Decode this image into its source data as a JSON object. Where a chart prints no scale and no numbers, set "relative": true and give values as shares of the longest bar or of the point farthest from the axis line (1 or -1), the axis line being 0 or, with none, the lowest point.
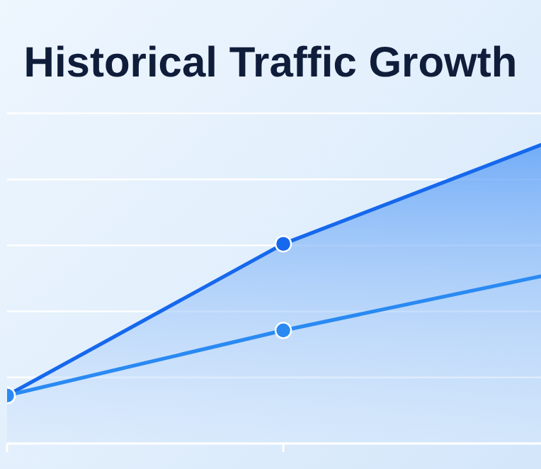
{
  "chart_data": {
    "type": "line",
    "title": "Historical Traffic Growth",
    "relative": true,
    "categories": [
      null,
      null,
      null
    ],
    "grid": true,
    "marker": "circle",
    "line_style": "solid",
    "tick_labels": false,
    "series": [
      {
        "type": "area",
        "color": "#1668ec",
        "values": [
          0.157,
          0.653,
          1
        ]
      },
      {
        "color": "#2a8af2",
        "values": [
          0.157,
          0.37,
          0.56
        ]
      }
    ]
  }
}
